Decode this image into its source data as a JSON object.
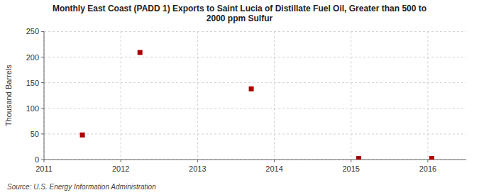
{
  "chart_data": {
    "type": "scatter",
    "title": "Monthly East Coast (PADD 1) Exports to Saint Lucia of Distillate Fuel Oil, Greater than 500 to\n2000 ppm Sulfur",
    "y_label": "Thousand Barrels",
    "source": "Source: U.S. Energy Information Administration",
    "x": [
      2011.5,
      2012.25,
      2013.7,
      2015.1,
      2016.05
    ],
    "values": [
      48,
      209,
      138,
      2,
      2
    ],
    "color": "#aa0000",
    "marker": "square",
    "xlim": [
      2011,
      2016.5
    ],
    "ylim": [
      0,
      250
    ],
    "xticks": [
      2011,
      2012,
      2013,
      2014,
      2015,
      2016
    ],
    "yticks": [
      0,
      50,
      100,
      150,
      200,
      250
    ],
    "grid": true
  }
}
